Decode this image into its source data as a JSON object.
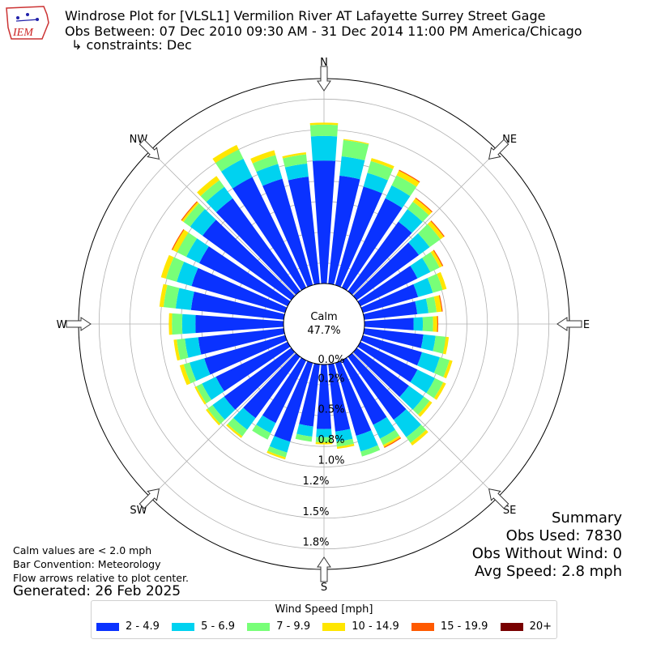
{
  "header": {
    "title_line1": "Windrose Plot for [VLSL1] Vermilion River  AT Lafayette  Surrey Street Gage",
    "title_line2": "Obs Between: 07 Dec 2010 09:30 AM - 31 Dec 2014 11:00 PM America/Chicago",
    "title_line3": "↳ constraints: Dec",
    "logo_text": "IEM"
  },
  "notes": {
    "calm_values": "Calm values are < 2.0 mph",
    "bar_convention": "Bar Convention: Meteorology",
    "flow_arrows": "Flow arrows relative to plot center.",
    "generated": "Generated: 26 Feb 2025"
  },
  "summary": {
    "heading": "Summary",
    "obs_used": "Obs Used: 7830",
    "obs_without_wind": "Obs Without Wind: 0",
    "avg_speed": "Avg Speed: 2.8 mph"
  },
  "legend": {
    "title": "Wind Speed [mph]"
  },
  "chart_data": {
    "type": "windrose",
    "calm_label": "Calm",
    "calm_value": "47.7%",
    "calm_percent": 47.7,
    "direction_labels": [
      "N",
      "NE",
      "E",
      "SE",
      "S",
      "SW",
      "W",
      "NW"
    ],
    "radial_ticks": [
      0.0,
      0.2,
      0.5,
      0.8,
      1.0,
      1.2,
      1.5,
      1.8
    ],
    "radial_tick_labels": [
      "0.0%",
      "0.2%",
      "0.5%",
      "0.8%",
      "1.0%",
      "1.2%",
      "1.5%",
      "1.8%"
    ],
    "rmax": 2.0,
    "directions_deg": [
      0,
      10,
      20,
      30,
      40,
      50,
      60,
      70,
      80,
      90,
      100,
      110,
      120,
      130,
      140,
      150,
      160,
      170,
      180,
      190,
      200,
      210,
      220,
      230,
      240,
      250,
      260,
      270,
      280,
      290,
      300,
      310,
      320,
      330,
      340,
      350
    ],
    "bins": [
      {
        "name": "2 - 4.9",
        "color": "#0a32ff",
        "values": [
          1.2,
          1.06,
          1.0,
          0.97,
          0.84,
          0.75,
          0.62,
          0.56,
          0.52,
          0.48,
          0.58,
          0.6,
          0.62,
          0.63,
          0.76,
          0.7,
          0.74,
          0.66,
          0.63,
          0.61,
          0.8,
          0.68,
          0.74,
          0.81,
          0.78,
          0.82,
          0.84,
          0.86,
          0.91,
          0.95,
          0.96,
          1.07,
          1.12,
          1.2,
          1.08,
          1.05
        ]
      },
      {
        "name": "5 - 6.9",
        "color": "#00d2f0",
        "values": [
          0.24,
          0.19,
          0.14,
          0.14,
          0.15,
          0.13,
          0.14,
          0.15,
          0.11,
          0.09,
          0.12,
          0.18,
          0.19,
          0.18,
          0.21,
          0.15,
          0.16,
          0.1,
          0.08,
          0.1,
          0.11,
          0.11,
          0.14,
          0.14,
          0.15,
          0.15,
          0.13,
          0.13,
          0.15,
          0.15,
          0.14,
          0.15,
          0.14,
          0.2,
          0.15,
          0.13
        ]
      },
      {
        "name": "7 - 9.9",
        "color": "#78ff78",
        "values": [
          0.11,
          0.16,
          0.12,
          0.11,
          0.09,
          0.13,
          0.1,
          0.1,
          0.08,
          0.1,
          0.1,
          0.1,
          0.09,
          0.07,
          0.07,
          0.07,
          0.05,
          0.05,
          0.05,
          0.05,
          0.05,
          0.07,
          0.08,
          0.06,
          0.06,
          0.06,
          0.08,
          0.1,
          0.12,
          0.11,
          0.1,
          0.08,
          0.08,
          0.1,
          0.09,
          0.09
        ]
      },
      {
        "name": "10 - 14.9",
        "color": "#ffe600",
        "values": [
          0.02,
          0.01,
          0.03,
          0.05,
          0.04,
          0.04,
          0.03,
          0.04,
          0.05,
          0.04,
          0.03,
          0.03,
          0.03,
          0.03,
          0.03,
          0.02,
          0.0,
          0.02,
          0.02,
          0.0,
          0.02,
          0.0,
          0.02,
          0.02,
          0.02,
          0.04,
          0.03,
          0.03,
          0.04,
          0.05,
          0.05,
          0.02,
          0.05,
          0.05,
          0.05,
          0.02
        ]
      },
      {
        "name": "15 - 19.9",
        "color": "#ff5a00",
        "values": [
          0,
          0,
          0,
          0.01,
          0.01,
          0.01,
          0.01,
          0,
          0.01,
          0.01,
          0,
          0,
          0,
          0,
          0,
          0.01,
          0,
          0,
          0,
          0,
          0,
          0,
          0,
          0,
          0,
          0,
          0,
          0,
          0,
          0,
          0.01,
          0.01,
          0,
          0,
          0,
          0
        ]
      },
      {
        "name": "20+",
        "color": "#780000",
        "values": [
          0,
          0,
          0,
          0,
          0,
          0,
          0,
          0,
          0,
          0,
          0,
          0,
          0,
          0,
          0,
          0,
          0,
          0,
          0,
          0,
          0,
          0,
          0,
          0,
          0,
          0,
          0,
          0,
          0,
          0,
          0,
          0,
          0,
          0,
          0,
          0
        ]
      }
    ]
  }
}
